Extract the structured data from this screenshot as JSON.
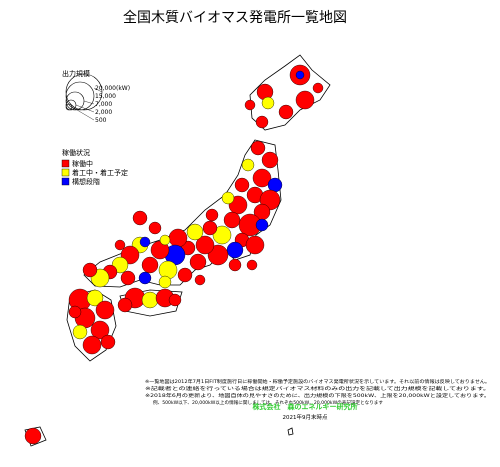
{
  "title": "全国木質バイオマス発電所一覧地図",
  "size_legend": {
    "title": "出力規模",
    "labels": [
      "20,000(kW)",
      "15,000",
      "7,000",
      "2,000",
      "500"
    ]
  },
  "status_legend": {
    "title": "稼働状況",
    "items": [
      {
        "label": "稼働中",
        "color": "#ff0000"
      },
      {
        "label": "着工中・着工予定",
        "color": "#ffff00"
      },
      {
        "label": "構想段階",
        "color": "#0000ff"
      }
    ]
  },
  "notes": [
    "※一覧地図は2012年7月1日FIT制度施行日に稼働開始・稼働予定施設のバイオマス発電所状況を示しています。それ以前の情報は反映しておりません。",
    "※記載者との連絡を行っている場合は規定バイオマス材料のみの出力を記載して出力規模を記載しております。",
    "※2018年6月の更新より、地図自体の見やすさのために、出力規模の下限を500kW、上限を20,000kWと設定しております。",
    "例、500kW以下、20,000kW以上の情報に関しましては、それぞれ500kW、20,000kWの表記設定となります"
  ],
  "company": "株式会社　森のエネルギー研究所",
  "date": "2021年9月末時点"
}
